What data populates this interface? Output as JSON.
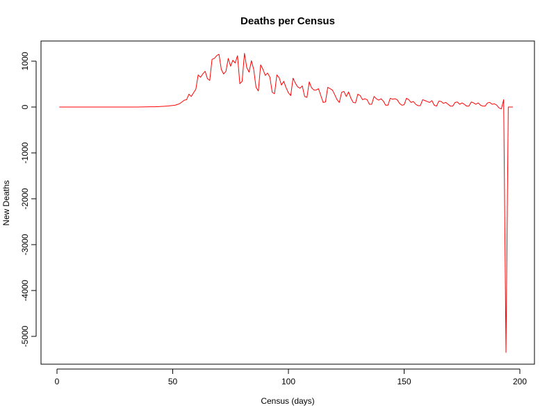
{
  "chart_data": {
    "type": "line",
    "title": "Deaths per Census",
    "xlabel": "Census (days)",
    "ylabel": "New Deaths",
    "xlim": [
      1,
      200
    ],
    "ylim": [
      -5400,
      1450
    ],
    "x_ticks": [
      0,
      50,
      100,
      150,
      200
    ],
    "x_tick_labels": [
      "0",
      "50",
      "100",
      "150",
      "200"
    ],
    "y_ticks": [
      1000,
      0,
      -1000,
      -2000,
      -3000,
      -4000,
      -5000
    ],
    "y_tick_labels": [
      "1000",
      "0",
      "-1000",
      "-2000",
      "-3000",
      "-4000",
      "-5000"
    ],
    "grid": false,
    "legend": "none",
    "series": [
      {
        "name": "New Deaths",
        "color": "#ff0000",
        "values": [
          0,
          0,
          0,
          0,
          0,
          0,
          0,
          0,
          0,
          0,
          0,
          0,
          0,
          0,
          0,
          0,
          0,
          0,
          0,
          0,
          0,
          0,
          0,
          0,
          0,
          0,
          0,
          0,
          0,
          0,
          0,
          0,
          0,
          0,
          0,
          1,
          2,
          3,
          4,
          6,
          5,
          5,
          8,
          10,
          13,
          15,
          18,
          22,
          28,
          34,
          40,
          55,
          75,
          110,
          150,
          160,
          280,
          230,
          310,
          390,
          700,
          650,
          720,
          780,
          620,
          580,
          1040,
          1060,
          1120,
          1150,
          820,
          720,
          780,
          1060,
          890,
          1020,
          960,
          1120,
          510,
          560,
          1170,
          860,
          760,
          1010,
          820,
          430,
          350,
          920,
          820,
          690,
          740,
          650,
          320,
          290,
          700,
          640,
          480,
          560,
          420,
          310,
          250,
          630,
          520,
          440,
          410,
          460,
          230,
          210,
          550,
          420,
          370,
          370,
          400,
          250,
          100,
          110,
          430,
          400,
          370,
          270,
          160,
          100,
          320,
          340,
          230,
          330,
          190,
          100,
          90,
          280,
          250,
          160,
          180,
          160,
          60,
          60,
          230,
          180,
          150,
          180,
          130,
          40,
          40,
          190,
          170,
          180,
          160,
          80,
          40,
          50,
          190,
          160,
          100,
          120,
          60,
          30,
          30,
          160,
          140,
          120,
          100,
          140,
          40,
          20,
          130,
          120,
          80,
          100,
          60,
          20,
          20,
          100,
          110,
          60,
          90,
          60,
          20,
          20,
          110,
          90,
          60,
          90,
          40,
          20,
          20,
          90,
          100,
          60,
          70,
          40,
          -20,
          -40,
          160,
          -5350,
          0,
          0,
          0
        ]
      }
    ]
  }
}
